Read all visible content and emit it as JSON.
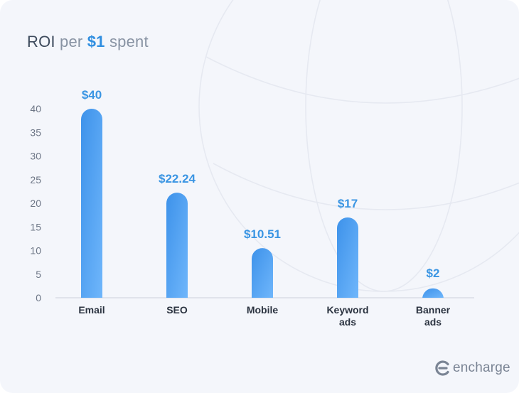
{
  "title": {
    "part1": "ROI",
    "part2": "per",
    "highlight": "$1",
    "part3": "spent"
  },
  "brand": {
    "name": "encharge",
    "icon": "encharge-logo-icon"
  },
  "colors": {
    "bar_top": "#3d92ea",
    "bar_bottom": "#6fb6fb",
    "label": "#3a95e3",
    "accent": "#2f8ee0"
  },
  "chart_data": {
    "type": "bar",
    "categories": [
      [
        "Email"
      ],
      [
        "SEO"
      ],
      [
        "Mobile"
      ],
      [
        "Keyword",
        "ads"
      ],
      [
        "Banner",
        "ads"
      ]
    ],
    "values": [
      40,
      22.24,
      10.51,
      17,
      2
    ],
    "data_labels": [
      "$40",
      "$22.24",
      "$10.51",
      "$17",
      "$2"
    ],
    "y_ticks": [
      0,
      5,
      10,
      15,
      20,
      25,
      30,
      35,
      40
    ],
    "ylim": [
      0,
      40
    ],
    "grid": false,
    "legend": "none"
  }
}
